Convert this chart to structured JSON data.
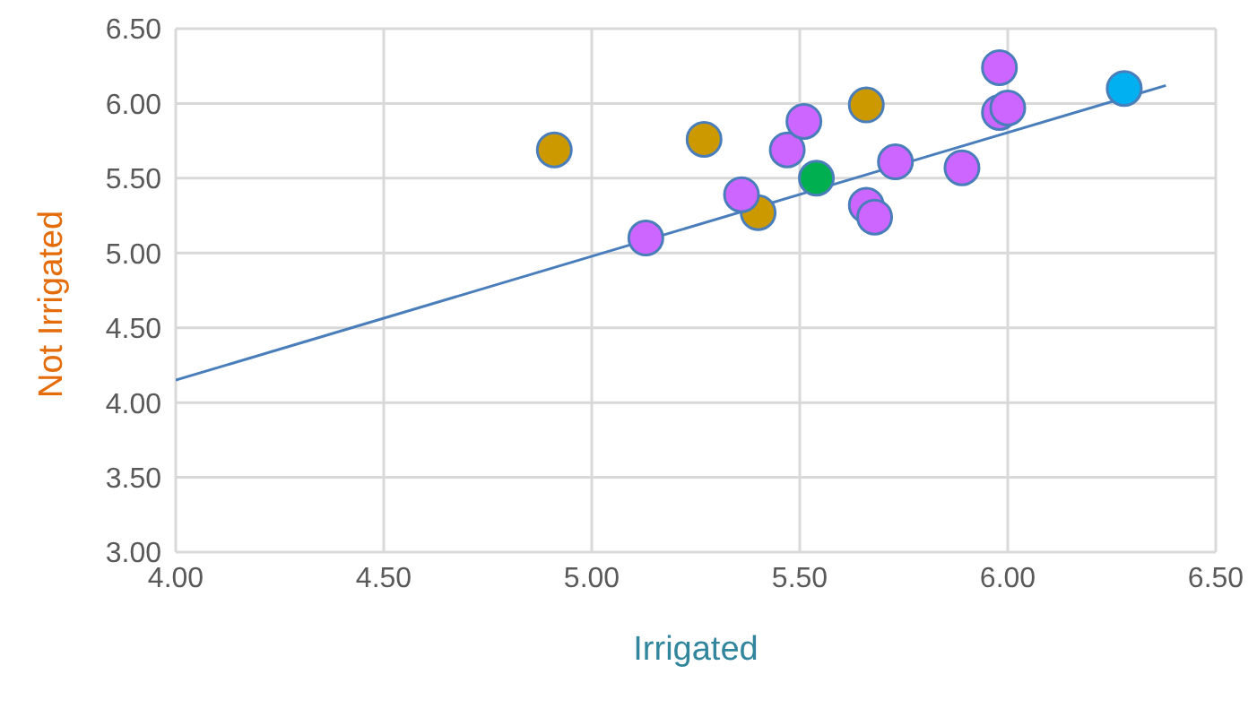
{
  "chart_data": {
    "type": "scatter",
    "xlabel": "Irrigated",
    "ylabel": "Not Irrigated",
    "xlim": [
      4,
      6.5
    ],
    "ylim": [
      3,
      6.5
    ],
    "xticks": [
      {
        "value": 4,
        "label": "4.00"
      },
      {
        "value": 4.5,
        "label": "4.50"
      },
      {
        "value": 5,
        "label": "5.00"
      },
      {
        "value": 5.5,
        "label": "5.50"
      },
      {
        "value": 6,
        "label": "6.00"
      },
      {
        "value": 6.5,
        "label": "6.50"
      }
    ],
    "yticks": [
      {
        "value": 3,
        "label": "3.00"
      },
      {
        "value": 3.5,
        "label": "3.50"
      },
      {
        "value": 4,
        "label": "4.00"
      },
      {
        "value": 4.5,
        "label": "4.50"
      },
      {
        "value": 5,
        "label": "5.00"
      },
      {
        "value": 5.5,
        "label": "5.50"
      },
      {
        "value": 6,
        "label": "6.00"
      },
      {
        "value": 6.5,
        "label": "6.50"
      }
    ],
    "grid": true,
    "marker": "circle",
    "series": [
      {
        "type": "line",
        "color": "#4a7ebb",
        "x": [
          4.0,
          6.38
        ],
        "values": [
          4.15,
          6.12
        ],
        "marker": "none"
      },
      {
        "color": "#cc9900",
        "x": [
          4.91,
          5.27,
          5.4,
          5.66
        ],
        "values": [
          5.69,
          5.76,
          5.27,
          5.99
        ]
      },
      {
        "color": "#cc66ff",
        "x": [
          5.13,
          5.36,
          5.47,
          5.51,
          5.73,
          5.66,
          5.68,
          5.89,
          5.98,
          5.98,
          6.0
        ],
        "values": [
          5.1,
          5.39,
          5.69,
          5.88,
          5.61,
          5.32,
          5.24,
          5.57,
          6.24,
          5.94,
          5.97
        ]
      },
      {
        "color": "#00b050",
        "x": [
          5.54
        ],
        "values": [
          5.5
        ]
      },
      {
        "color": "#00b0f0",
        "x": [
          6.28
        ],
        "values": [
          6.1
        ]
      }
    ]
  }
}
